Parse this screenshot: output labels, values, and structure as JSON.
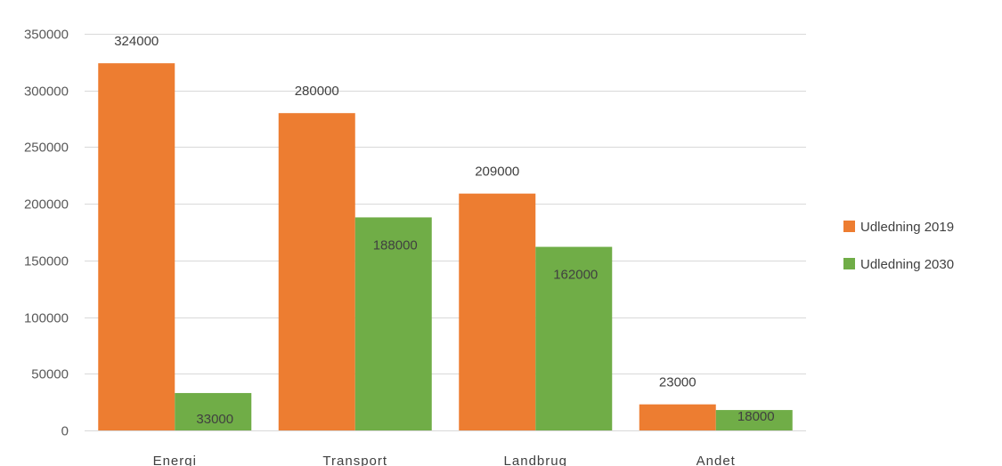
{
  "chart_data": {
    "type": "bar",
    "categories": [
      "Energi",
      "Transport",
      "Landbrug",
      "Andet"
    ],
    "series": [
      {
        "name": "Udledning 2019",
        "color": "#ED7D31",
        "values": [
          324000,
          280000,
          209000,
          23000
        ]
      },
      {
        "name": "Udledning 2030",
        "color": "#70AD47",
        "values": [
          33000,
          188000,
          162000,
          18000
        ]
      }
    ],
    "ylim": [
      0,
      350000
    ],
    "yticks": [
      0,
      50000,
      100000,
      150000,
      200000,
      250000,
      300000,
      350000
    ],
    "grid": true,
    "legend_position": "right",
    "data_labels": true,
    "title": "",
    "xlabel": "",
    "ylabel": ""
  }
}
